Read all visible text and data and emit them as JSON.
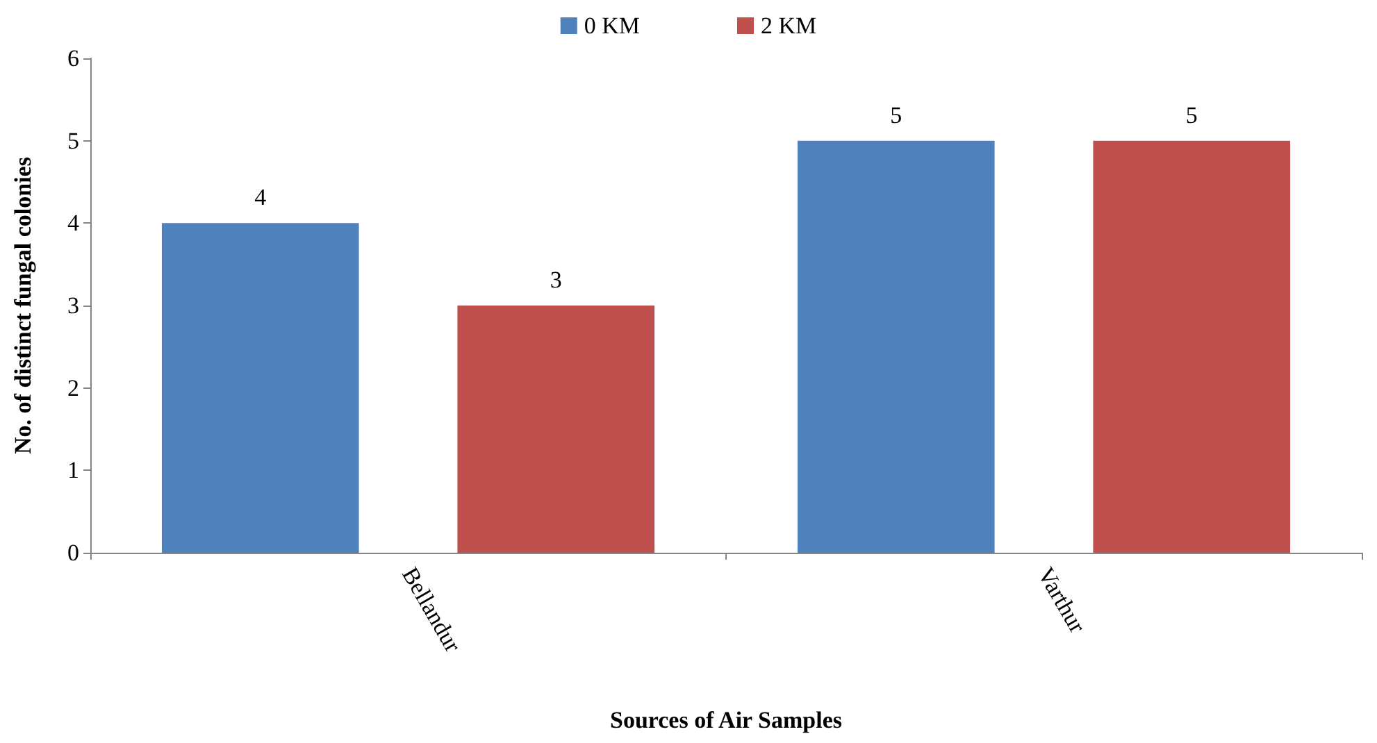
{
  "chart_data": {
    "type": "bar",
    "xlabel": "Sources of Air Samples",
    "ylabel": "No. of distinct fungal colonies",
    "categories": [
      "Bellandur",
      "Varthur"
    ],
    "series": [
      {
        "name": "0 KM",
        "color": "#4f81bd",
        "values": [
          4,
          5
        ]
      },
      {
        "name": "2 KM",
        "color": "#c0504d",
        "values": [
          3,
          5
        ]
      }
    ],
    "ylim": [
      0,
      6
    ],
    "yticks": [
      0,
      1,
      2,
      3,
      4,
      5,
      6
    ],
    "grid": false,
    "legend": "top",
    "data_labels": true
  }
}
